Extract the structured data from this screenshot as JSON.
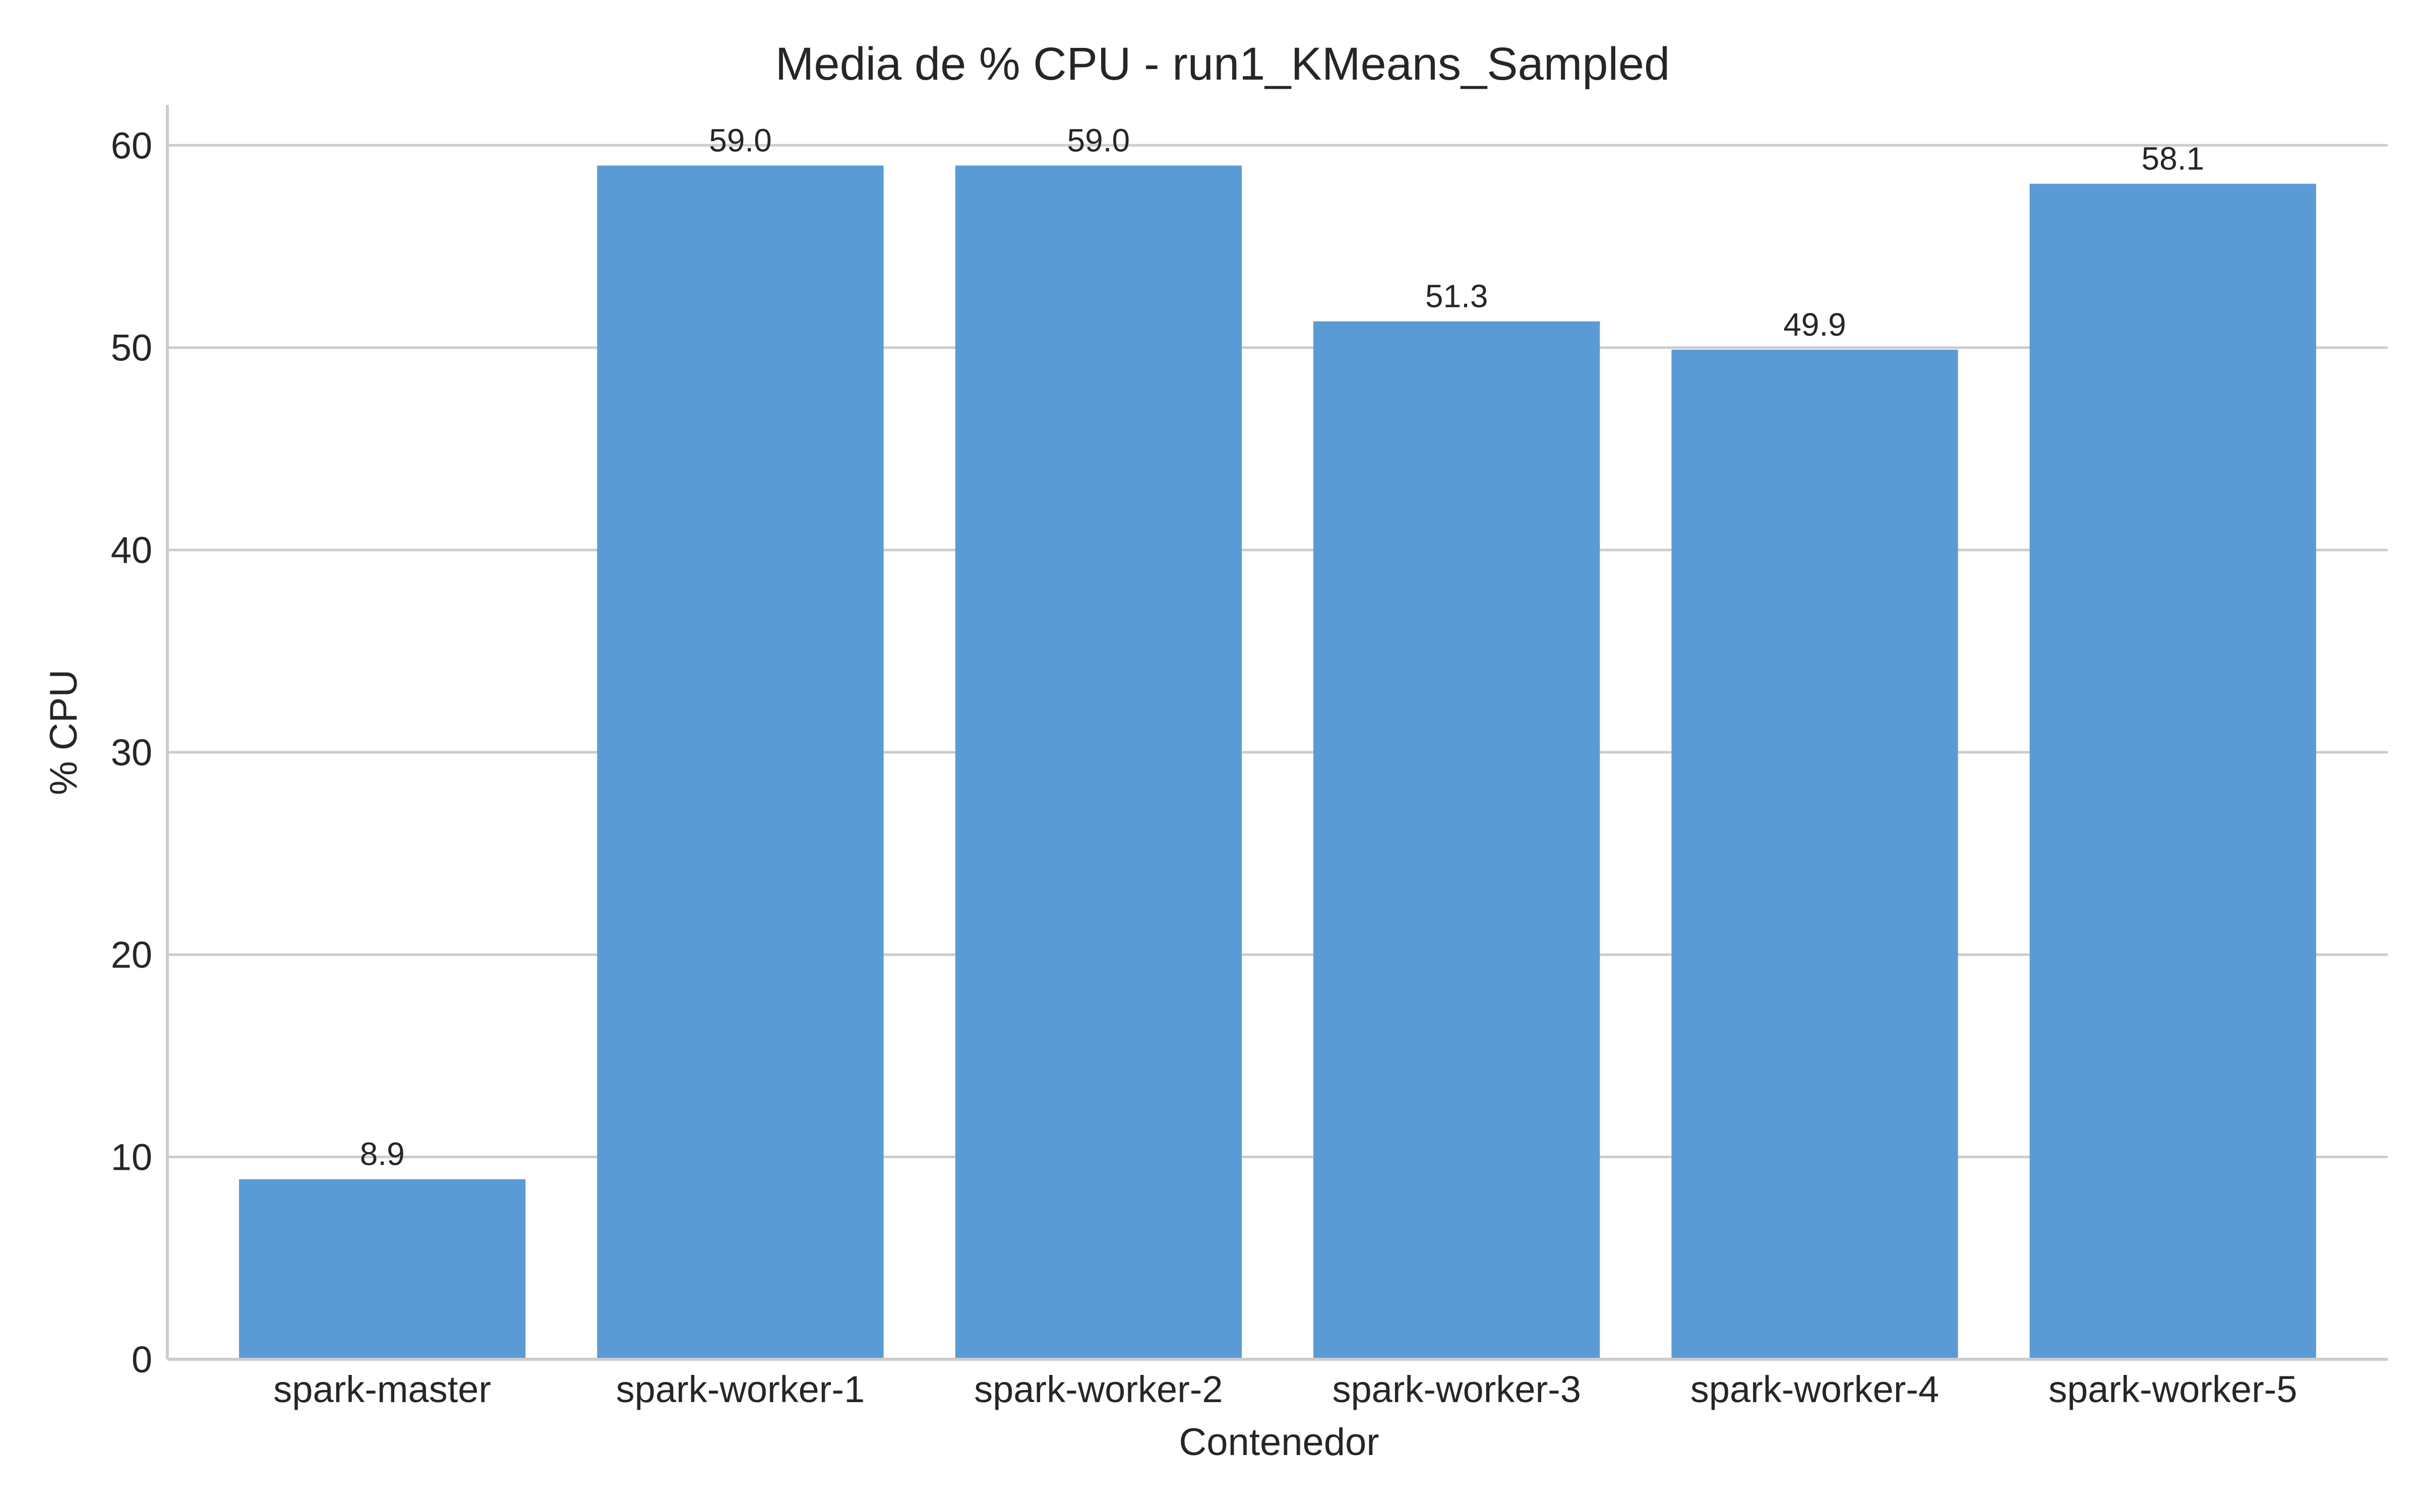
{
  "chart_data": {
    "type": "bar",
    "title": "Media de % CPU - run1_KMeans_Sampled",
    "xlabel": "Contenedor",
    "ylabel": "% CPU",
    "categories": [
      "spark-master",
      "spark-worker-1",
      "spark-worker-2",
      "spark-worker-3",
      "spark-worker-4",
      "spark-worker-5"
    ],
    "values": [
      8.9,
      59.0,
      59.0,
      51.3,
      49.9,
      58.1
    ],
    "value_labels": [
      "8.9",
      "59.0",
      "59.0",
      "51.3",
      "49.9",
      "58.1"
    ],
    "yticks": [
      0,
      10,
      20,
      30,
      40,
      50,
      60
    ],
    "ytick_labels": [
      "0",
      "10",
      "20",
      "30",
      "40",
      "50",
      "60"
    ],
    "ylim": [
      0,
      62
    ],
    "grid": "horizontal",
    "legend": "none",
    "colors": {
      "bar": "#5b9bd5",
      "grid": "#cccccc",
      "text": "#262626"
    }
  }
}
